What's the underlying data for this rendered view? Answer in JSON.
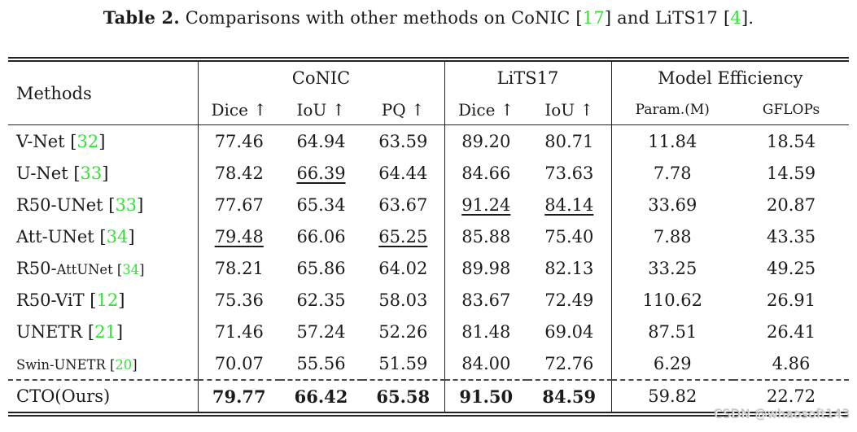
{
  "colors": {
    "citation_green": "#30e430",
    "ink": "#1b1b1b"
  },
  "title": {
    "segments": [
      {
        "t": "Table 2.",
        "st": "b"
      },
      {
        "t": " Comparisons with other methods on CoNIC ["
      },
      {
        "t": "17",
        "st": "g"
      },
      {
        "t": "] and LiTS17 ["
      },
      {
        "t": "4",
        "st": "g"
      },
      {
        "t": "]."
      }
    ]
  },
  "table": {
    "header": {
      "methods": "Methods",
      "groups": [
        {
          "label": "CoNIC",
          "cols": [
            "Dice ↑",
            "IoU ↑",
            "PQ ↑"
          ]
        },
        {
          "label": "LiTS17",
          "cols": [
            "Dice ↑",
            "IoU ↑"
          ]
        },
        {
          "label": "Model Efficiency",
          "cols": [
            "Param.(M)",
            "GFLOPs"
          ]
        }
      ]
    },
    "rows": [
      {
        "method": [
          {
            "t": "V-Net ["
          },
          {
            "t": "32",
            "st": "g"
          },
          {
            "t": "]"
          }
        ],
        "values": [
          {
            "v": "77.46"
          },
          {
            "v": "64.94"
          },
          {
            "v": "63.59"
          },
          {
            "v": "89.20"
          },
          {
            "v": "80.71"
          },
          {
            "v": "11.84"
          },
          {
            "v": "18.54"
          }
        ]
      },
      {
        "method": [
          {
            "t": "U-Net ["
          },
          {
            "t": "33",
            "st": "g"
          },
          {
            "t": "]"
          }
        ],
        "values": [
          {
            "v": "78.42"
          },
          {
            "v": "66.39",
            "st": "u"
          },
          {
            "v": "64.44"
          },
          {
            "v": "84.66"
          },
          {
            "v": "73.63"
          },
          {
            "v": "7.78"
          },
          {
            "v": "14.59"
          }
        ]
      },
      {
        "method": [
          {
            "t": "R50-UNet ["
          },
          {
            "t": "33",
            "st": "g"
          },
          {
            "t": "]"
          }
        ],
        "values": [
          {
            "v": "77.67"
          },
          {
            "v": "65.34"
          },
          {
            "v": "63.67"
          },
          {
            "v": "91.24",
            "st": "u"
          },
          {
            "v": "84.14",
            "st": "u"
          },
          {
            "v": "33.69"
          },
          {
            "v": "20.87"
          }
        ]
      },
      {
        "method": [
          {
            "t": "Att-UNet ["
          },
          {
            "t": "34",
            "st": "g"
          },
          {
            "t": "]"
          }
        ],
        "values": [
          {
            "v": "79.48",
            "st": "u"
          },
          {
            "v": "66.06"
          },
          {
            "v": "65.25",
            "st": "u"
          },
          {
            "v": "85.88"
          },
          {
            "v": "75.40"
          },
          {
            "v": "7.88"
          },
          {
            "v": "43.35"
          }
        ]
      },
      {
        "method": [
          {
            "t": "R50-"
          },
          {
            "t": "AttUNet [",
            "st": "s"
          },
          {
            "t": "34",
            "st": "g s"
          },
          {
            "t": "]",
            "st": "s"
          }
        ],
        "values": [
          {
            "v": "78.21"
          },
          {
            "v": "65.86"
          },
          {
            "v": "64.02"
          },
          {
            "v": "89.98"
          },
          {
            "v": "82.13"
          },
          {
            "v": "33.25"
          },
          {
            "v": "49.25"
          }
        ]
      },
      {
        "method": [
          {
            "t": "R50-ViT ["
          },
          {
            "t": "12",
            "st": "g"
          },
          {
            "t": "]"
          }
        ],
        "values": [
          {
            "v": "75.36"
          },
          {
            "v": "62.35"
          },
          {
            "v": "58.03"
          },
          {
            "v": "83.67"
          },
          {
            "v": "72.49"
          },
          {
            "v": "110.62"
          },
          {
            "v": "26.91"
          }
        ]
      },
      {
        "method": [
          {
            "t": "UNETR ["
          },
          {
            "t": "21",
            "st": "g"
          },
          {
            "t": "]"
          }
        ],
        "values": [
          {
            "v": "71.46"
          },
          {
            "v": "57.24"
          },
          {
            "v": "52.26"
          },
          {
            "v": "81.48"
          },
          {
            "v": "69.04"
          },
          {
            "v": "87.51"
          },
          {
            "v": "26.41"
          }
        ]
      },
      {
        "method": [
          {
            "t": "Swin-UNETR [",
            "st": "s"
          },
          {
            "t": "20",
            "st": "g s"
          },
          {
            "t": "]",
            "st": "s"
          }
        ],
        "values": [
          {
            "v": "70.07"
          },
          {
            "v": "55.56"
          },
          {
            "v": "51.59"
          },
          {
            "v": "84.00"
          },
          {
            "v": "72.76"
          },
          {
            "v": "6.29"
          },
          {
            "v": "4.86"
          }
        ]
      },
      {
        "method": [
          {
            "t": "CTO(Ours)"
          }
        ],
        "values": [
          {
            "v": "79.77",
            "st": "b"
          },
          {
            "v": "66.42",
            "st": "b"
          },
          {
            "v": "65.58",
            "st": "b"
          },
          {
            "v": "91.50",
            "st": "b"
          },
          {
            "v": "84.59",
            "st": "b"
          },
          {
            "v": "59.82"
          },
          {
            "v": "22.72"
          }
        ]
      }
    ]
  },
  "watermark": {
    "text": "CSDN @whaosoft143"
  }
}
